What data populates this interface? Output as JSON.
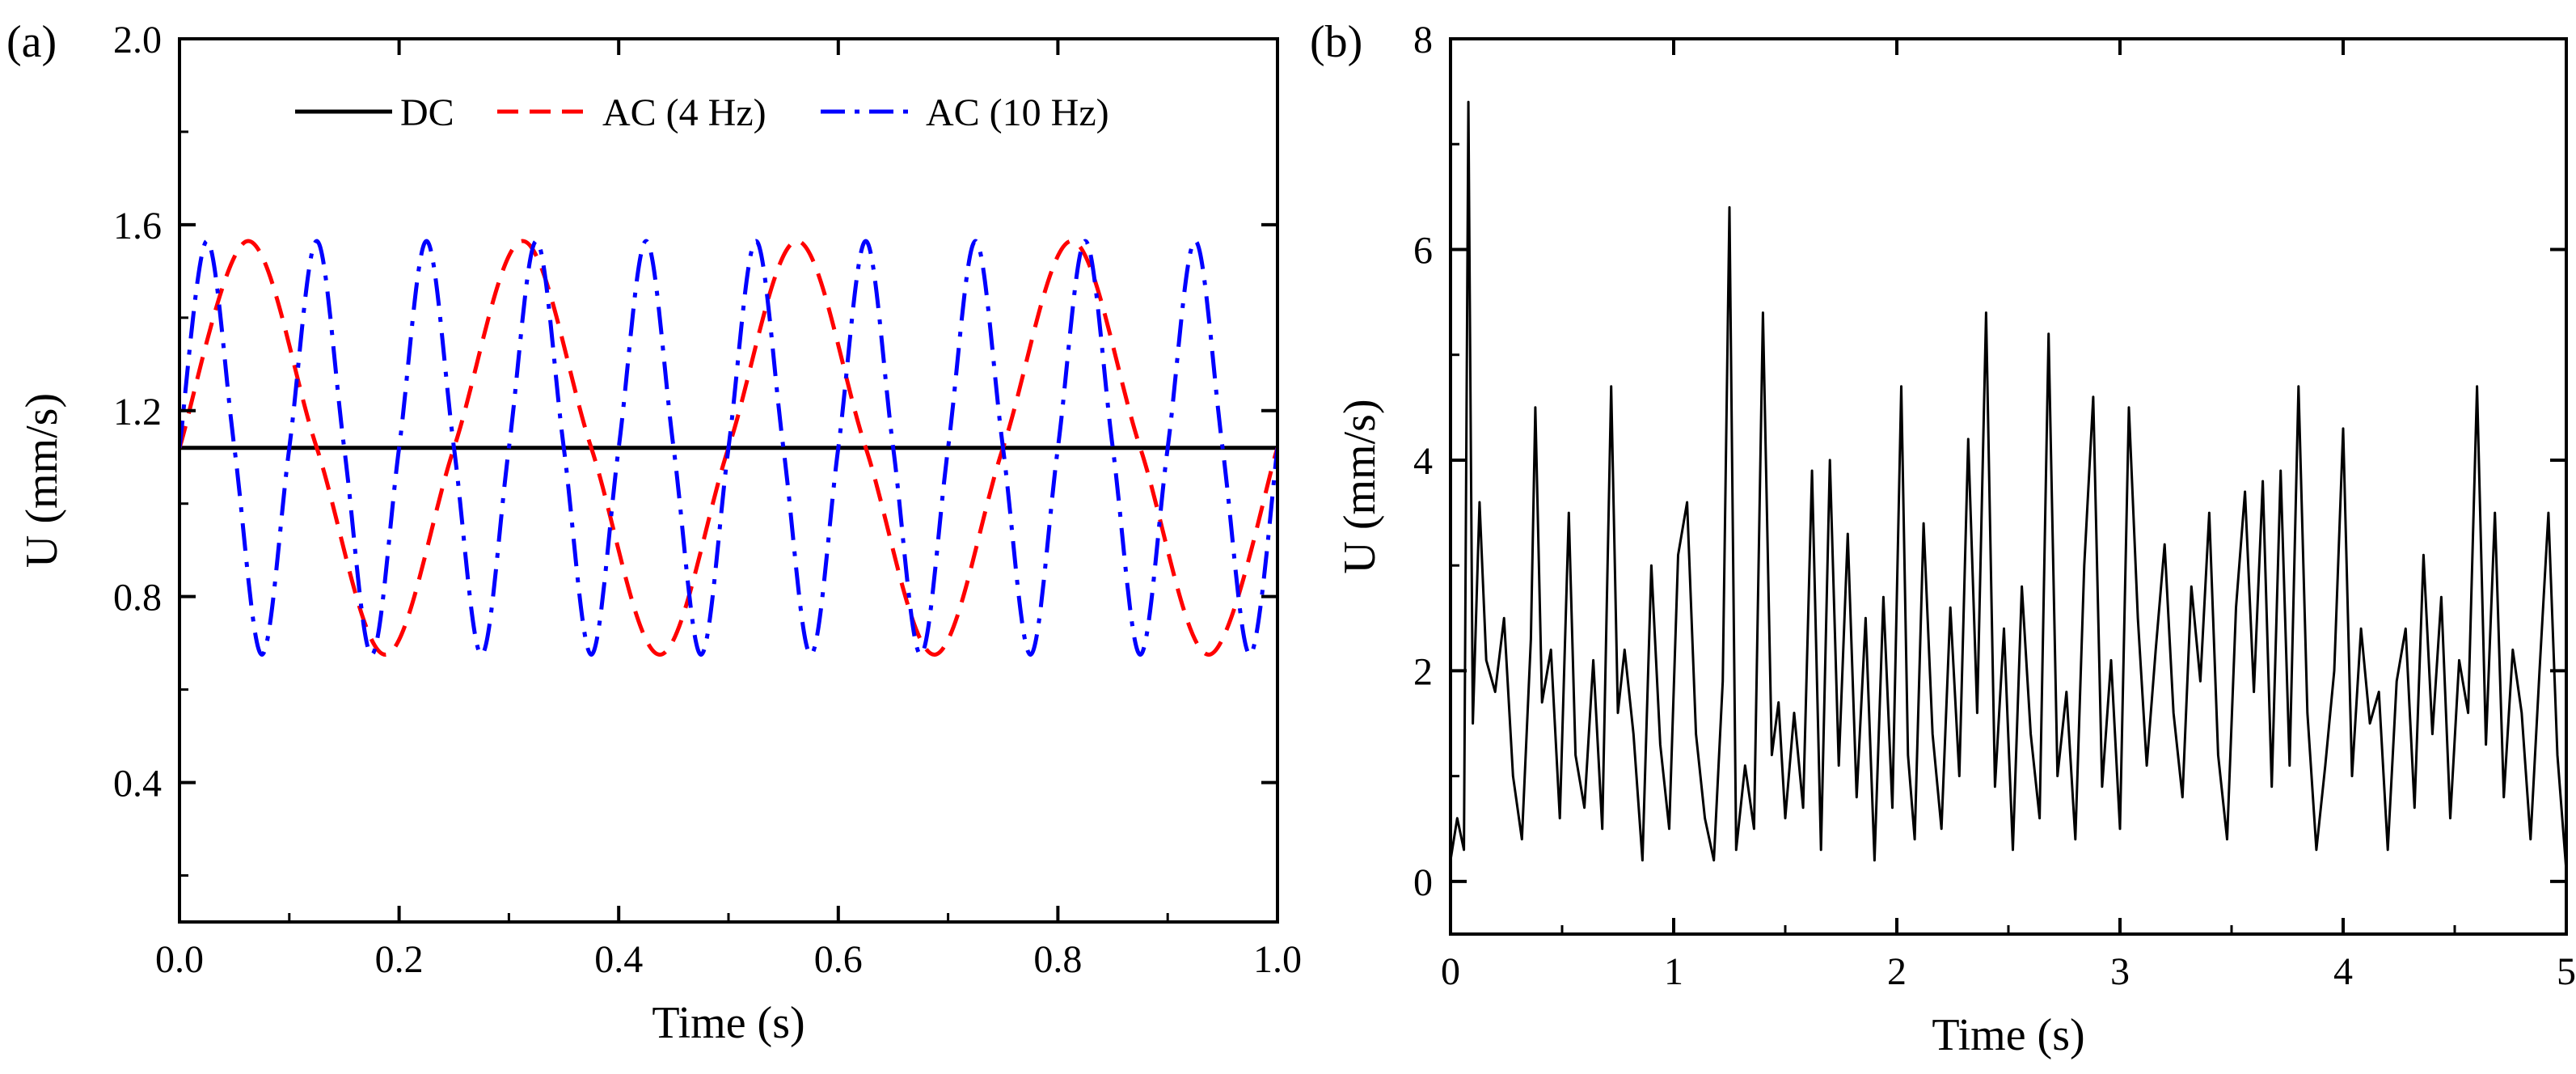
{
  "chart_data": [
    {
      "panel_label": "(a)",
      "type": "line",
      "title": "",
      "xlabel": "Time (s)",
      "ylabel": "U (mm/s)",
      "xlim": [
        0.0,
        1.0
      ],
      "ylim": [
        0.1,
        2.0
      ],
      "x_ticks": [
        0.0,
        0.2,
        0.4,
        0.6,
        0.8,
        1.0
      ],
      "x_tick_labels": [
        "0.0",
        "0.2",
        "0.4",
        "0.6",
        "0.8",
        "1.0"
      ],
      "y_ticks": [
        0.4,
        0.8,
        1.2,
        1.6,
        2.0
      ],
      "y_tick_labels": [
        "0.4",
        "0.8",
        "1.2",
        "1.6",
        "2.0"
      ],
      "grid": false,
      "legend_position": "top",
      "series": [
        {
          "name": "DC",
          "style": "solid",
          "color": "#000000",
          "x": [
            0.0,
            1.0
          ],
          "y": [
            1.12,
            1.12
          ]
        },
        {
          "name": "AC (4 Hz)",
          "style": "dashed",
          "color": "#ff0000",
          "x": [
            0.0,
            0.0625,
            0.125,
            0.1875,
            0.25,
            0.3125,
            0.375,
            0.4375,
            0.5,
            0.5625,
            0.625,
            0.6875,
            0.75,
            0.8125,
            0.875,
            0.9375,
            1.0
          ],
          "y": [
            1.12,
            1.565,
            1.12,
            0.675,
            1.12,
            1.565,
            1.12,
            0.675,
            1.12,
            1.565,
            1.12,
            0.675,
            1.12,
            1.565,
            1.12,
            0.675,
            1.12
          ]
        },
        {
          "name": "AC (10 Hz)",
          "style": "dashdot",
          "color": "#0000ff",
          "x": [
            0.0,
            0.025,
            0.05,
            0.075,
            0.1,
            0.125,
            0.15,
            0.175,
            0.2,
            0.225,
            0.25,
            0.275,
            0.3,
            0.325,
            0.35,
            0.375,
            0.4,
            0.425,
            0.45,
            0.475,
            0.5,
            0.525,
            0.55,
            0.575,
            0.6,
            0.625,
            0.65,
            0.675,
            0.7,
            0.725,
            0.75,
            0.775,
            0.8,
            0.825,
            0.85,
            0.875,
            0.9,
            0.925,
            0.95,
            0.975,
            1.0
          ],
          "y": [
            1.12,
            1.565,
            1.12,
            0.675,
            1.12,
            1.565,
            1.12,
            0.675,
            1.12,
            1.565,
            1.12,
            0.675,
            1.12,
            1.565,
            1.12,
            0.675,
            1.12,
            1.565,
            1.12,
            0.675,
            1.12,
            1.565,
            1.12,
            0.675,
            1.12,
            1.565,
            1.12,
            0.675,
            1.12,
            1.565,
            1.12,
            0.675,
            1.12,
            1.565,
            1.12,
            0.675,
            1.12,
            1.565,
            1.12,
            0.675,
            1.12
          ]
        }
      ]
    },
    {
      "panel_label": "(b)",
      "type": "line",
      "title": "",
      "xlabel": "Time (s)",
      "ylabel": "U (mm/s)",
      "xlim": [
        0,
        5
      ],
      "ylim": [
        -0.5,
        8
      ],
      "x_ticks": [
        0,
        1,
        2,
        3,
        4,
        5
      ],
      "x_tick_labels": [
        "0",
        "1",
        "2",
        "3",
        "4",
        "5"
      ],
      "y_ticks": [
        0,
        2,
        4,
        6,
        8
      ],
      "y_tick_labels": [
        "0",
        "2",
        "4",
        "6",
        "8"
      ],
      "grid": false,
      "series": [
        {
          "name": "U",
          "style": "solid",
          "color": "#000000",
          "x": [
            0.0,
            0.03,
            0.06,
            0.08,
            0.1,
            0.13,
            0.16,
            0.2,
            0.24,
            0.28,
            0.32,
            0.36,
            0.38,
            0.41,
            0.45,
            0.49,
            0.53,
            0.56,
            0.6,
            0.64,
            0.68,
            0.72,
            0.75,
            0.78,
            0.82,
            0.86,
            0.9,
            0.94,
            0.98,
            1.02,
            1.06,
            1.1,
            1.14,
            1.18,
            1.22,
            1.25,
            1.28,
            1.32,
            1.36,
            1.4,
            1.44,
            1.47,
            1.5,
            1.54,
            1.58,
            1.62,
            1.66,
            1.7,
            1.74,
            1.78,
            1.82,
            1.86,
            1.9,
            1.94,
            1.98,
            2.02,
            2.05,
            2.08,
            2.12,
            2.16,
            2.2,
            2.24,
            2.28,
            2.32,
            2.36,
            2.4,
            2.44,
            2.48,
            2.52,
            2.56,
            2.6,
            2.64,
            2.68,
            2.72,
            2.76,
            2.8,
            2.84,
            2.88,
            2.92,
            2.96,
            3.0,
            3.04,
            3.08,
            3.12,
            3.16,
            3.2,
            3.24,
            3.28,
            3.32,
            3.36,
            3.4,
            3.44,
            3.48,
            3.52,
            3.56,
            3.6,
            3.64,
            3.68,
            3.72,
            3.76,
            3.8,
            3.84,
            3.88,
            3.92,
            3.96,
            4.0,
            4.04,
            4.08,
            4.12,
            4.16,
            4.2,
            4.24,
            4.28,
            4.32,
            4.36,
            4.4,
            4.44,
            4.48,
            4.52,
            4.56,
            4.6,
            4.64,
            4.68,
            4.72,
            4.76,
            4.8,
            4.84,
            4.88,
            4.92,
            4.96,
            5.0
          ],
          "y": [
            0.2,
            0.6,
            0.3,
            7.4,
            1.5,
            3.6,
            2.1,
            1.8,
            2.5,
            1.0,
            0.4,
            2.3,
            4.5,
            1.7,
            2.2,
            0.6,
            3.5,
            1.2,
            0.7,
            2.1,
            0.5,
            4.7,
            1.6,
            2.2,
            1.4,
            0.2,
            3.0,
            1.3,
            0.5,
            3.1,
            3.6,
            1.4,
            0.6,
            0.2,
            1.9,
            6.4,
            0.3,
            1.1,
            0.5,
            5.4,
            1.2,
            1.7,
            0.6,
            1.6,
            0.7,
            3.9,
            0.3,
            4.0,
            1.1,
            3.3,
            0.8,
            2.5,
            0.2,
            2.7,
            0.7,
            4.7,
            1.2,
            0.4,
            3.4,
            1.4,
            0.5,
            2.6,
            1.0,
            4.2,
            1.6,
            5.4,
            0.9,
            2.4,
            0.3,
            2.8,
            1.4,
            0.6,
            5.2,
            1.0,
            1.8,
            0.4,
            3.0,
            4.6,
            0.9,
            2.1,
            0.5,
            4.5,
            2.5,
            1.1,
            2.2,
            3.2,
            1.6,
            0.8,
            2.8,
            1.9,
            3.5,
            1.2,
            0.4,
            2.6,
            3.7,
            1.8,
            3.8,
            0.9,
            3.9,
            1.1,
            4.7,
            1.6,
            0.3,
            1.1,
            2.0,
            4.3,
            1.0,
            2.4,
            1.5,
            1.8,
            0.3,
            1.9,
            2.4,
            0.7,
            3.1,
            1.4,
            2.7,
            0.6,
            2.1,
            1.6,
            4.7,
            1.3,
            3.5,
            0.8,
            2.2,
            1.6,
            0.4,
            2.0,
            3.5,
            1.2,
            0.1
          ]
        }
      ]
    }
  ]
}
